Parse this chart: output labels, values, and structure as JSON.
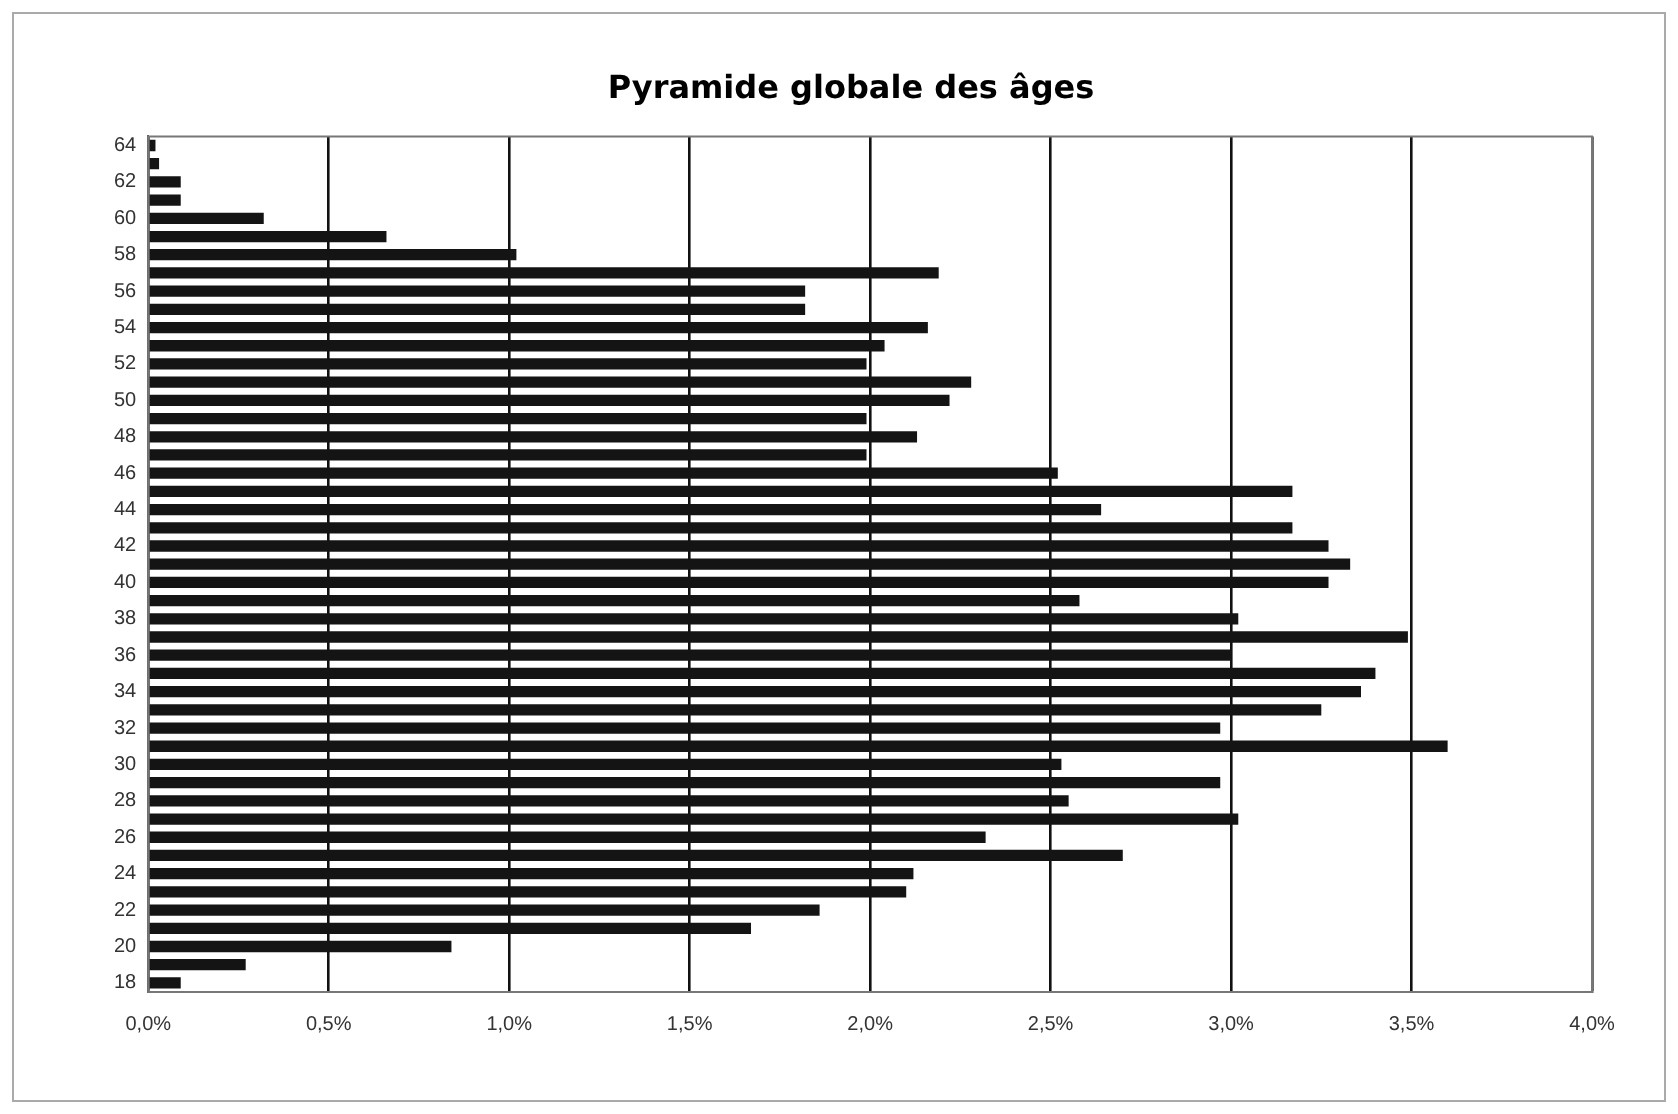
{
  "chart_data": {
    "type": "bar",
    "orientation": "horizontal",
    "title": "Pyramide globale des âges",
    "categories": [
      "64",
      null,
      "62",
      null,
      "60",
      null,
      "58",
      null,
      "56",
      null,
      "54",
      null,
      "52",
      null,
      "50",
      null,
      "48",
      null,
      "46",
      null,
      "44",
      null,
      "42",
      null,
      "40",
      null,
      "38",
      null,
      "36",
      null,
      "34",
      null,
      "32",
      null,
      "30",
      null,
      "28",
      null,
      "26",
      null,
      "24",
      null,
      "22",
      null,
      "20",
      null,
      "18"
    ],
    "values": [
      0.02,
      0.03,
      0.09,
      0.09,
      0.32,
      0.66,
      1.02,
      2.19,
      1.82,
      1.82,
      2.16,
      2.04,
      1.99,
      2.28,
      2.22,
      1.99,
      2.13,
      1.99,
      2.52,
      3.17,
      2.64,
      3.17,
      3.27,
      3.33,
      3.27,
      2.58,
      3.02,
      3.49,
      3.0,
      3.4,
      3.36,
      3.25,
      2.97,
      3.6,
      2.53,
      2.97,
      2.55,
      3.02,
      2.32,
      2.7,
      2.12,
      2.1,
      1.86,
      1.67,
      0.84,
      0.27,
      0.09
    ],
    "color": "#141414",
    "xlim": [
      0,
      4
    ],
    "xticks": [
      {
        "value": 0,
        "label": "0,0%"
      },
      {
        "value": 0.5,
        "label": "0,5%"
      },
      {
        "value": 1,
        "label": "1,0%"
      },
      {
        "value": 1.5,
        "label": "1,5%"
      },
      {
        "value": 2,
        "label": "2,0%"
      },
      {
        "value": 2.5,
        "label": "2,5%"
      },
      {
        "value": 3,
        "label": "3,0%"
      },
      {
        "value": 3.5,
        "label": "3,5%"
      },
      {
        "value": 4,
        "label": "4,0%"
      }
    ],
    "grid": "x",
    "legend": false
  }
}
